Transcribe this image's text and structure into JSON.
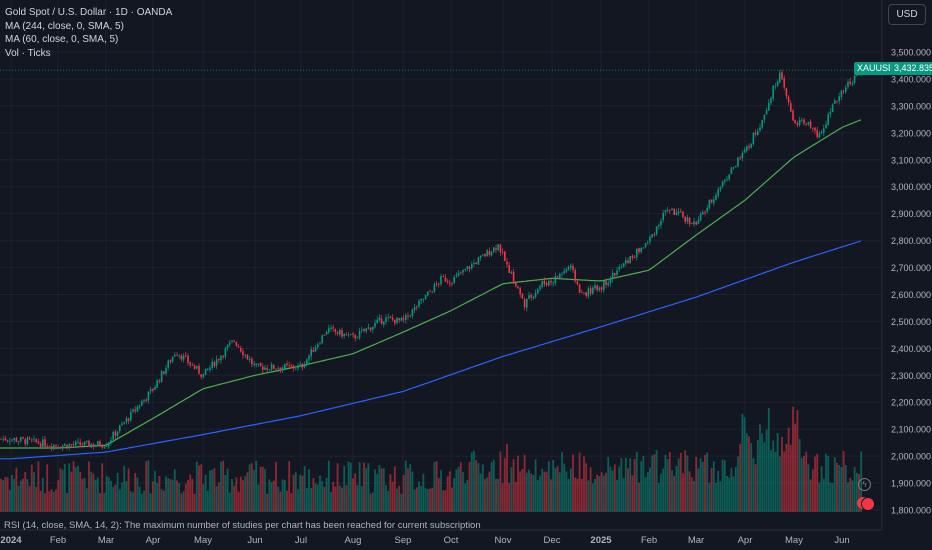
{
  "legend": {
    "title": "Gold Spot / U.S. Dollar · 1D · OANDA",
    "ma1": "MA (244, close, 0, SMA, 5)",
    "ma2": "MA (60, close, 0, SMA, 5)",
    "vol": "Vol · Ticks"
  },
  "currency": "USD",
  "ticker_badge": "XAUUSD",
  "price_badge": "3,432.835",
  "notice": "RSI (14, close, SMA, 14, 2): The maximum number of studies per chart has been reached for current subscription",
  "colors": {
    "background": "#131722",
    "up": "#089981",
    "down": "#f23645",
    "ma244": "#2962ff",
    "ma60": "#4caf50",
    "grid": "#1e222d"
  },
  "chart_data": {
    "type": "candlestick",
    "symbol": "XAUUSD",
    "timeframe": "1D",
    "y_ticks": [
      "3,500.000",
      "3,400.000",
      "3,300.000",
      "3,200.000",
      "3,100.000",
      "3,000.000",
      "2,900.000",
      "2,800.000",
      "2,700.000",
      "2,600.000",
      "2,500.000",
      "2,400.000",
      "2,300.000",
      "2,200.000",
      "2,100.000",
      "2,000.000",
      "1,900.000",
      "1,800.000"
    ],
    "ylim": [
      1780,
      3570
    ],
    "x_ticks": [
      "2024",
      "Feb",
      "Mar",
      "Apr",
      "May",
      "Jun",
      "Jul",
      "Aug",
      "Sep",
      "Oct",
      "Nov",
      "Dec",
      "2025",
      "Feb",
      "Mar",
      "Apr",
      "May",
      "Jun"
    ],
    "last_price": 3432.835,
    "close_anchors": [
      [
        "2024",
        2064
      ],
      [
        "Feb",
        2040
      ],
      [
        "Mar",
        2045
      ],
      [
        "Apr",
        2250
      ],
      [
        "Apr15",
        2390
      ],
      [
        "May",
        2300
      ],
      [
        "May20",
        2430
      ],
      [
        "Jun",
        2330
      ],
      [
        "Jul",
        2330
      ],
      [
        "Jul17",
        2470
      ],
      [
        "Aug",
        2440
      ],
      [
        "Aug20",
        2510
      ],
      [
        "Sep",
        2500
      ],
      [
        "Sep25",
        2660
      ],
      [
        "Oct",
        2650
      ],
      [
        "Oct30",
        2785
      ],
      [
        "Nov",
        2740
      ],
      [
        "Nov14",
        2565
      ],
      [
        "Nov25",
        2640
      ],
      [
        "Dec",
        2650
      ],
      [
        "Dec12",
        2705
      ],
      [
        "Dec19",
        2600
      ],
      [
        "2025",
        2630
      ],
      [
        "Feb",
        2800
      ],
      [
        "Feb12",
        2920
      ],
      [
        "Mar",
        2860
      ],
      [
        "Mar20",
        3040
      ],
      [
        "Apr",
        3130
      ],
      [
        "Apr10",
        3230
      ],
      [
        "Apr22",
        3420
      ],
      [
        "May",
        3240
      ],
      [
        "May12",
        3230
      ],
      [
        "May15",
        3180
      ],
      [
        "Jun",
        3360
      ],
      [
        "Jun13",
        3432
      ]
    ],
    "ma60_anchors": [
      [
        "2024",
        2030
      ],
      [
        "Feb",
        2030
      ],
      [
        "Mar",
        2040
      ],
      [
        "Apr",
        2140
      ],
      [
        "May",
        2250
      ],
      [
        "Jun",
        2300
      ],
      [
        "Jul",
        2335
      ],
      [
        "Aug",
        2380
      ],
      [
        "Sep",
        2460
      ],
      [
        "Oct",
        2540
      ],
      [
        "Nov",
        2640
      ],
      [
        "Dec",
        2660
      ],
      [
        "2025",
        2650
      ],
      [
        "Feb",
        2690
      ],
      [
        "Mar",
        2820
      ],
      [
        "Apr",
        2950
      ],
      [
        "May",
        3110
      ],
      [
        "Jun",
        3220
      ],
      [
        "Jun13",
        3250
      ]
    ],
    "ma244_anchors": [
      [
        "2024",
        1990
      ],
      [
        "Mar",
        2015
      ],
      [
        "May",
        2080
      ],
      [
        "Jul",
        2150
      ],
      [
        "Sep",
        2240
      ],
      [
        "Nov",
        2370
      ],
      [
        "2025",
        2480
      ],
      [
        "Mar",
        2590
      ],
      [
        "May",
        2720
      ],
      [
        "Jun13",
        2800
      ]
    ]
  }
}
